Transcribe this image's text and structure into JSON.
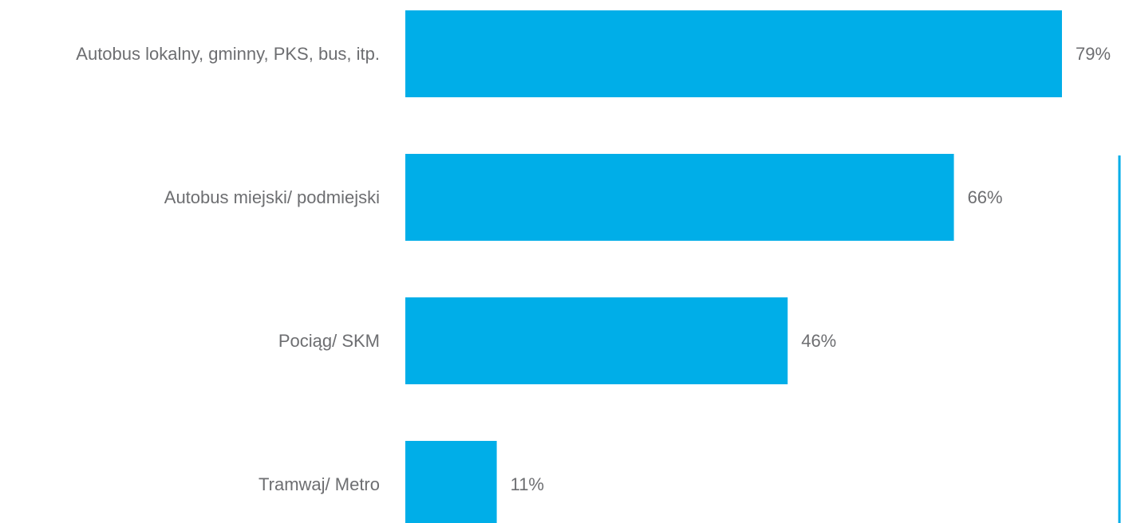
{
  "chart_data": {
    "type": "bar",
    "orientation": "horizontal",
    "categories": [
      "Autobus lokalny, gminny, PKS, bus, itp.",
      "Autobus miejski/ podmiejski",
      "Pociąg/ SKM",
      "Tramwaj/ Metro"
    ],
    "values": [
      79,
      66,
      46,
      11
    ],
    "value_labels": [
      "79%",
      "66%",
      "46%",
      "11%"
    ],
    "unit": "%",
    "xlim": [
      0,
      100
    ],
    "grid": false,
    "legend": "none"
  },
  "colors": {
    "bar": "#00aee8",
    "text": "#6d6e71",
    "accent_line": "#00aee8"
  }
}
